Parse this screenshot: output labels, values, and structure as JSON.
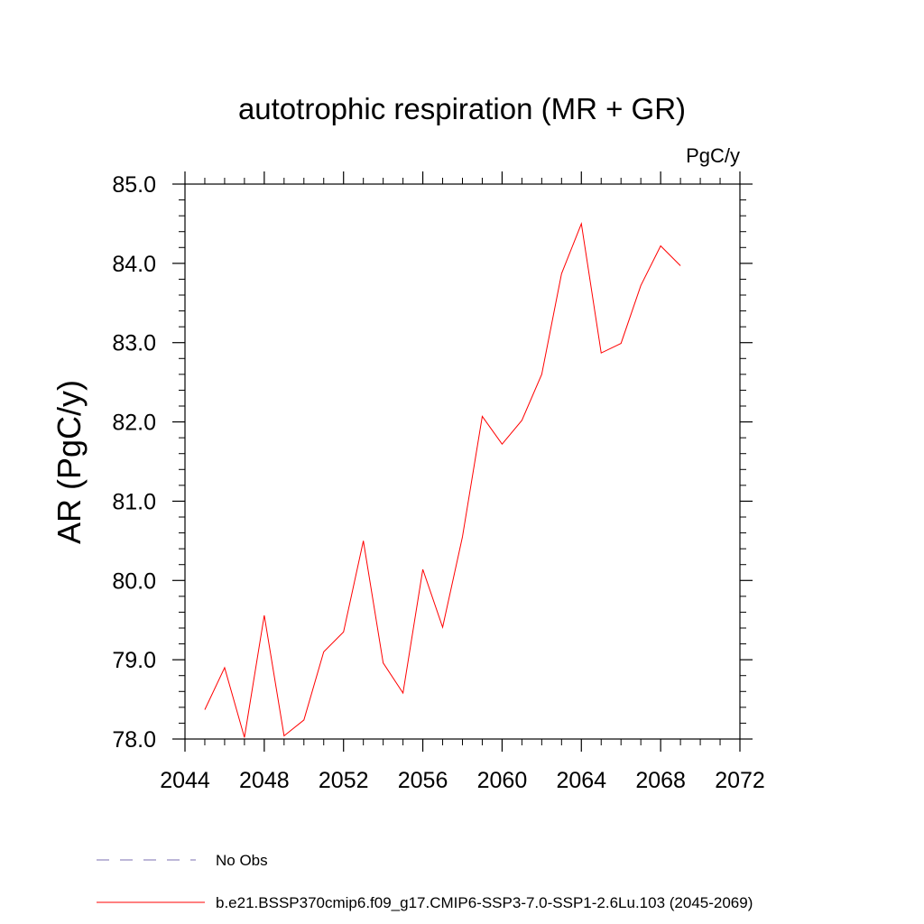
{
  "chart_data": {
    "type": "line",
    "title": "autotrophic respiration (MR + GR)",
    "units": "PgC/y",
    "xlabel": "",
    "ylabel": "AR  (PgC/y)",
    "xlim": [
      2044,
      2072
    ],
    "ylim": [
      78.0,
      85.0
    ],
    "x_ticks": [
      2044,
      2048,
      2052,
      2056,
      2060,
      2064,
      2068,
      2072
    ],
    "x_tick_labels": [
      "2044",
      "2048",
      "2052",
      "2056",
      "2060",
      "2064",
      "2068",
      "2072"
    ],
    "y_ticks": [
      78.0,
      79.0,
      80.0,
      81.0,
      82.0,
      83.0,
      84.0,
      85.0
    ],
    "y_tick_labels": [
      "78.0",
      "79.0",
      "80.0",
      "81.0",
      "82.0",
      "83.0",
      "84.0",
      "85.0"
    ],
    "grid": false,
    "series": [
      {
        "name": "b.e21.BSSP370cmip6.f09_g17.CMIP6-SSP3-7.0-SSP1-2.6Lu.103 (2045-2069)",
        "color": "#ff0000",
        "x": [
          2045,
          2046,
          2047,
          2048,
          2049,
          2050,
          2051,
          2052,
          2053,
          2054,
          2055,
          2056,
          2057,
          2058,
          2059,
          2060,
          2061,
          2062,
          2063,
          2064,
          2065,
          2066,
          2067,
          2068,
          2069
        ],
        "values": [
          78.37,
          78.9,
          78.02,
          79.56,
          78.04,
          78.24,
          79.1,
          79.35,
          80.5,
          78.96,
          78.58,
          80.14,
          79.41,
          80.55,
          82.07,
          81.72,
          82.02,
          82.6,
          83.87,
          84.5,
          82.87,
          82.99,
          83.72,
          84.22,
          83.97
        ]
      }
    ],
    "legend": [
      {
        "label": "No Obs",
        "style": "dashed",
        "color": "#7b6fb0"
      },
      {
        "label": "b.e21.BSSP370cmip6.f09_g17.CMIP6-SSP3-7.0-SSP1-2.6Lu.103 (2045-2069)",
        "style": "solid",
        "color": "#ff0000"
      }
    ],
    "legend_position": "bottom-left"
  }
}
